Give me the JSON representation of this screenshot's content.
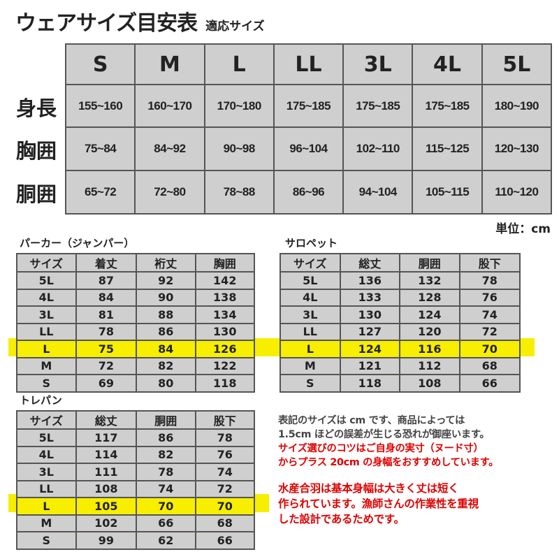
{
  "title": "ウェアサイズ目安表",
  "subtitle": "適応サイズ",
  "main_table": {
    "sizes": [
      "S",
      "M",
      "L",
      "LL",
      "3L",
      "4L",
      "5L"
    ],
    "rows": [
      {
        "label": "身長",
        "values": [
          "155~160",
          "160~170",
          "170~180",
          "175~185",
          "175~185",
          "175~185",
          "180~190"
        ]
      },
      {
        "label": "胸囲",
        "values": [
          "75~84",
          "84~92",
          "90~98",
          "96~104",
          "102~110",
          "115~125",
          "120~130"
        ]
      },
      {
        "label": "胴囲",
        "values": [
          "65~72",
          "72~80",
          "78~88",
          "86~96",
          "94~104",
          "105~115",
          "110~120"
        ]
      }
    ],
    "unit": "単位：cm"
  },
  "tables": [
    {
      "title": "パーカー（ジャンパー）",
      "headers": [
        "サイズ",
        "着丈",
        "裄丈",
        "胸囲"
      ],
      "rows": [
        [
          "5L",
          "87",
          "92",
          "142"
        ],
        [
          "4L",
          "84",
          "90",
          "138"
        ],
        [
          "3L",
          "81",
          "88",
          "134"
        ],
        [
          "LL",
          "78",
          "86",
          "130"
        ],
        [
          "L",
          "75",
          "84",
          "126"
        ],
        [
          "M",
          "72",
          "82",
          "122"
        ],
        [
          "S",
          "69",
          "80",
          "118"
        ]
      ]
    },
    {
      "title": "サロペット",
      "headers": [
        "サイズ",
        "総丈",
        "胴囲",
        "股下"
      ],
      "rows": [
        [
          "5L",
          "136",
          "132",
          "78"
        ],
        [
          "4L",
          "133",
          "128",
          "76"
        ],
        [
          "3L",
          "130",
          "124",
          "74"
        ],
        [
          "LL",
          "127",
          "120",
          "72"
        ],
        [
          "L",
          "124",
          "116",
          "70"
        ],
        [
          "M",
          "121",
          "112",
          "68"
        ],
        [
          "S",
          "118",
          "108",
          "66"
        ]
      ]
    },
    {
      "title": "トレパン",
      "headers": [
        "サイズ",
        "総丈",
        "胴囲",
        "股下"
      ],
      "rows": [
        [
          "5L",
          "117",
          "86",
          "78"
        ],
        [
          "4L",
          "114",
          "82",
          "76"
        ],
        [
          "3L",
          "111",
          "78",
          "74"
        ],
        [
          "LL",
          "108",
          "74",
          "72"
        ],
        [
          "L",
          "105",
          "70",
          "70"
        ],
        [
          "M",
          "102",
          "66",
          "68"
        ],
        [
          "S",
          "99",
          "62",
          "66"
        ]
      ]
    }
  ],
  "highlight_size": "L",
  "highlight_color": "#f7ee00",
  "notes": {
    "gray": [
      "表記のサイズは cm です、商品によっては",
      "1.5cm ほどの誤差が生じる恐れが御座います。"
    ],
    "red1": [
      "サイズ選びのコツはご自身の実寸（ヌード寸）",
      "からプラス 20cm の身幅をおすすめしています。"
    ],
    "red2": [
      "水産合羽は基本身幅は大きく丈は短く",
      "作られています。漁師さんの作業性を重視",
      "した設計であるためです。"
    ]
  }
}
